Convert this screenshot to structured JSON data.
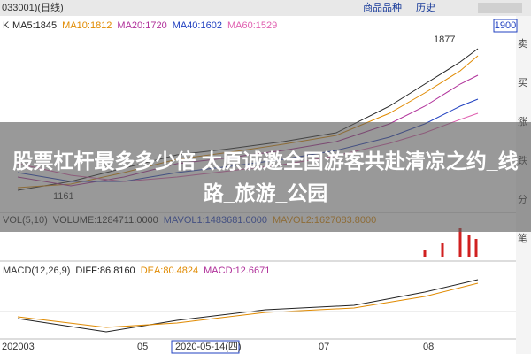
{
  "toolbar": {
    "code": "033001)(日线)",
    "menu": [
      "商品品种",
      "历史"
    ],
    "price_box": "1900"
  },
  "kline": {
    "label": "K",
    "indicators": [
      {
        "text": "MA5:1845",
        "color": "#222222"
      },
      {
        "text": "MA10:1812",
        "color": "#e08a00"
      },
      {
        "text": "MA20:1720",
        "color": "#b0309a"
      },
      {
        "text": "MA40:1602",
        "color": "#2040c0"
      },
      {
        "text": "MA60:1529",
        "color": "#e060b0"
      }
    ],
    "high_label": "1877",
    "low_label": "1161"
  },
  "side": [
    "卖",
    "买",
    "涨",
    "跌",
    "分",
    "笔"
  ],
  "headline": "股票杠杆最多多少倍 太原诚邀全国游客共赴清凉之约_线路_旅游_公园",
  "volume": {
    "indicators": [
      {
        "text": "VOL(5,10)",
        "color": "#333333"
      },
      {
        "text": "VOLUME:1284711.0000",
        "color": "#222222"
      },
      {
        "text": "MAVOL1:1483681.0000",
        "color": "#2040c0"
      },
      {
        "text": "MAVOL2:1627083.8000",
        "color": "#e08a00"
      }
    ]
  },
  "macd": {
    "indicators": [
      {
        "text": "MACD(12,26,9)",
        "color": "#333333"
      },
      {
        "text": "DIFF:86.8160",
        "color": "#222222"
      },
      {
        "text": "DEA:80.4824",
        "color": "#e08a00"
      },
      {
        "text": "MACD:12.6671",
        "color": "#b0309a"
      }
    ]
  },
  "dates": [
    "202003",
    "05",
    "2020-05-14(四)",
    "07",
    "08"
  ]
}
